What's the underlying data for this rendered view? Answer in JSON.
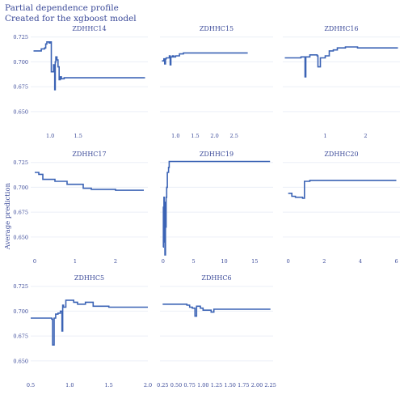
{
  "title": "Partial dependence profile",
  "subtitle": "Created for the xgboost model",
  "ylabel": "Average prediction",
  "chart_data": [
    {
      "type": "line",
      "title": "ZDHHC14",
      "xlim": [
        0.65,
        2.75
      ],
      "ylim": [
        0.632,
        0.728
      ],
      "yticks": [
        0.65,
        0.675,
        0.7,
        0.725
      ],
      "ytick_labels": [
        "0.650",
        "0.675",
        "0.700",
        "0.725"
      ],
      "xticks": [
        1.0,
        1.5
      ],
      "xtick_labels": [
        "1.0",
        "1.5"
      ],
      "x": [
        0.7,
        0.8,
        0.84,
        0.88,
        0.9,
        0.92,
        0.94,
        0.96,
        0.98,
        1.0,
        1.02,
        1.04,
        1.06,
        1.08,
        1.09,
        1.1,
        1.12,
        1.14,
        1.16,
        1.18,
        1.2,
        1.25,
        2.0,
        2.7
      ],
      "y": [
        0.711,
        0.711,
        0.713,
        0.713,
        0.714,
        0.718,
        0.72,
        0.72,
        0.719,
        0.72,
        0.69,
        0.69,
        0.697,
        0.672,
        0.7,
        0.705,
        0.702,
        0.695,
        0.682,
        0.685,
        0.683,
        0.684,
        0.684,
        0.684
      ]
    },
    {
      "type": "line",
      "title": "ZDHHC15",
      "xlim": [
        0.6,
        3.5
      ],
      "ylim": [
        0.632,
        0.728
      ],
      "yticks": [
        0.65,
        0.675,
        0.7,
        0.725
      ],
      "ytick_labels": [
        "0.650",
        "0.675",
        "0.700",
        "0.725"
      ],
      "xticks": [
        1.0,
        1.5,
        2.0,
        2.5
      ],
      "xtick_labels": [
        "1.0",
        "1.5",
        "2.0",
        "2.5"
      ],
      "x": [
        0.65,
        0.7,
        0.72,
        0.74,
        0.76,
        0.8,
        0.84,
        0.86,
        0.88,
        0.92,
        0.95,
        1.0,
        1.1,
        1.2,
        1.3,
        1.4,
        1.6,
        2.0,
        2.85
      ],
      "y": [
        0.701,
        0.703,
        0.698,
        0.703,
        0.704,
        0.704,
        0.706,
        0.697,
        0.705,
        0.706,
        0.705,
        0.706,
        0.708,
        0.709,
        0.709,
        0.709,
        0.709,
        0.709,
        0.709
      ]
    },
    {
      "type": "line",
      "title": "ZDHHC16",
      "xlim": [
        -0.05,
        2.85
      ],
      "ylim": [
        0.632,
        0.728
      ],
      "yticks": [
        0.65,
        0.675,
        0.7,
        0.725
      ],
      "ytick_labels": [
        "0.650",
        "0.675",
        "0.700",
        "0.725"
      ],
      "xticks": [
        1,
        2
      ],
      "xtick_labels": [
        "1",
        "2"
      ],
      "x": [
        0.0,
        0.3,
        0.4,
        0.5,
        0.52,
        0.55,
        0.62,
        0.8,
        0.82,
        0.88,
        1.0,
        1.1,
        1.2,
        1.3,
        1.5,
        1.8,
        2.8
      ],
      "y": [
        0.704,
        0.704,
        0.705,
        0.685,
        0.705,
        0.705,
        0.707,
        0.706,
        0.695,
        0.704,
        0.706,
        0.711,
        0.712,
        0.714,
        0.715,
        0.714,
        0.714
      ]
    },
    {
      "type": "line",
      "title": "ZDHHC17",
      "xlim": [
        -0.1,
        2.8
      ],
      "ylim": [
        0.632,
        0.728
      ],
      "yticks": [
        0.65,
        0.675,
        0.7,
        0.725
      ],
      "ytick_labels": [
        "0.650",
        "0.675",
        "0.700",
        "0.725"
      ],
      "xticks": [
        0,
        1,
        2
      ],
      "xtick_labels": [
        "0",
        "1",
        "2"
      ],
      "x": [
        0.0,
        0.1,
        0.2,
        0.3,
        0.5,
        0.8,
        1.1,
        1.2,
        1.4,
        2.0,
        2.7
      ],
      "y": [
        0.715,
        0.713,
        0.708,
        0.708,
        0.706,
        0.703,
        0.703,
        0.699,
        0.698,
        0.697,
        0.697
      ]
    },
    {
      "type": "line",
      "title": "ZDHHC19",
      "xlim": [
        -0.5,
        18.0
      ],
      "ylim": [
        0.632,
        0.728
      ],
      "yticks": [
        0.65,
        0.675,
        0.7,
        0.725
      ],
      "ytick_labels": [
        "0.650",
        "0.675",
        "0.700",
        "0.725"
      ],
      "xticks": [
        0,
        5,
        10,
        15
      ],
      "xtick_labels": [
        "0",
        "5",
        "10",
        "15"
      ],
      "x": [
        0.0,
        0.05,
        0.1,
        0.15,
        0.2,
        0.25,
        0.3,
        0.4,
        0.5,
        0.6,
        0.7,
        0.9,
        1.0,
        1.1,
        2.0,
        17.5
      ],
      "y": [
        0.64,
        0.68,
        0.66,
        0.69,
        0.645,
        0.685,
        0.632,
        0.66,
        0.69,
        0.7,
        0.715,
        0.72,
        0.726,
        0.726,
        0.726,
        0.726
      ]
    },
    {
      "type": "line",
      "title": "ZDHHC20",
      "xlim": [
        -0.3,
        6.2
      ],
      "ylim": [
        0.632,
        0.728
      ],
      "yticks": [
        0.65,
        0.675,
        0.7,
        0.725
      ],
      "ytick_labels": [
        "0.650",
        "0.675",
        "0.700",
        "0.725"
      ],
      "xticks": [
        0,
        2,
        4,
        6
      ],
      "xtick_labels": [
        "0",
        "2",
        "4",
        "6"
      ],
      "x": [
        0.0,
        0.1,
        0.2,
        0.4,
        0.6,
        0.8,
        0.9,
        1.0,
        1.2,
        2.0,
        6.0
      ],
      "y": [
        0.694,
        0.694,
        0.691,
        0.69,
        0.69,
        0.689,
        0.706,
        0.706,
        0.707,
        0.707,
        0.707
      ]
    },
    {
      "type": "line",
      "title": "ZDHHC5",
      "xlim": [
        0.5,
        2.0
      ],
      "ylim": [
        0.632,
        0.728
      ],
      "yticks": [
        0.65,
        0.675,
        0.7,
        0.725
      ],
      "ytick_labels": [
        "0.650",
        "0.675",
        "0.700",
        "0.725"
      ],
      "xticks": [
        0.5,
        1.0,
        1.5,
        2.0
      ],
      "xtick_labels": [
        "0.5",
        "1.0",
        "1.5",
        "2.0"
      ],
      "x": [
        0.5,
        0.75,
        0.77,
        0.78,
        0.8,
        0.82,
        0.85,
        0.88,
        0.9,
        0.91,
        0.92,
        0.95,
        1.0,
        1.05,
        1.1,
        1.2,
        1.3,
        1.5,
        1.8,
        2.0
      ],
      "y": [
        0.693,
        0.693,
        0.692,
        0.666,
        0.693,
        0.697,
        0.698,
        0.7,
        0.68,
        0.706,
        0.704,
        0.711,
        0.711,
        0.709,
        0.707,
        0.709,
        0.705,
        0.704,
        0.704,
        0.704
      ]
    },
    {
      "type": "line",
      "title": "ZDHHC6",
      "xlim": [
        0.2,
        2.3
      ],
      "ylim": [
        0.632,
        0.728
      ],
      "yticks": [
        0.65,
        0.675,
        0.7,
        0.725
      ],
      "ytick_labels": [
        "0.650",
        "0.675",
        "0.700",
        "0.725"
      ],
      "xticks": [
        0.25,
        0.5,
        0.75,
        1.0,
        1.25,
        1.5,
        1.75,
        2.0,
        2.25
      ],
      "xtick_labels": [
        "0.25",
        "0.50",
        "0.75",
        "1.00",
        "1.25",
        "1.50",
        "1.75",
        "2.00",
        "2.25"
      ],
      "x": [
        0.25,
        0.5,
        0.7,
        0.75,
        0.8,
        0.85,
        0.88,
        0.9,
        0.95,
        1.0,
        1.1,
        1.15,
        1.2,
        1.3,
        1.5,
        2.25
      ],
      "y": [
        0.707,
        0.707,
        0.706,
        0.704,
        0.703,
        0.695,
        0.705,
        0.705,
        0.703,
        0.701,
        0.701,
        0.699,
        0.702,
        0.702,
        0.702,
        0.702
      ]
    }
  ],
  "colors": {
    "line": "#3b63b5",
    "text": "#3b4a99",
    "grid": "#eceff7"
  }
}
